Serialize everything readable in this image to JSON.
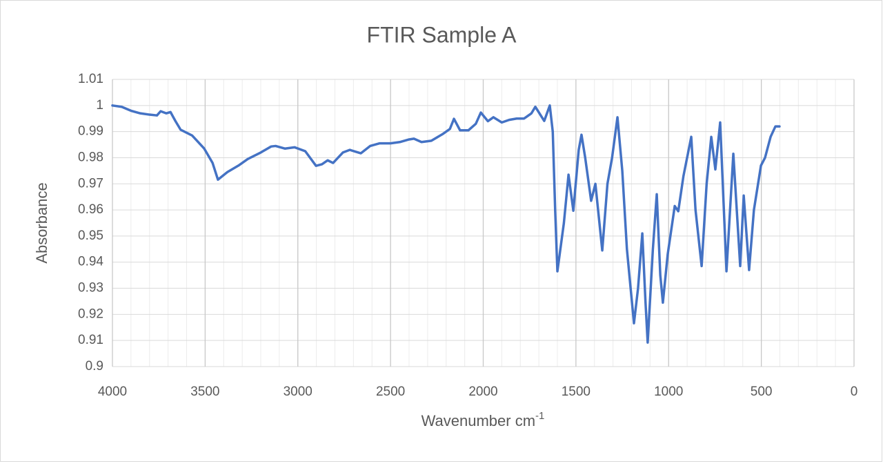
{
  "chart_data": {
    "type": "line",
    "title": "FTIR Sample A",
    "x_label": {
      "text": "Wavenumber cm",
      "superscript": "-1"
    },
    "y_label": "Absorbance",
    "color": "#4472c4",
    "xlim": [
      4000,
      0
    ],
    "xticks": [
      4000,
      3500,
      3000,
      2500,
      2000,
      1500,
      1000,
      500,
      0
    ],
    "minor_grid_step": 100,
    "ylim": [
      0.9,
      1.01
    ],
    "yticks": [
      1.01,
      1,
      0.99,
      0.98,
      0.97,
      0.96,
      0.95,
      0.94,
      0.93,
      0.92,
      0.91,
      0.9
    ],
    "grid": true,
    "x": [
      4000,
      3950,
      3900,
      3850,
      3800,
      3760,
      3740,
      3710,
      3687,
      3660,
      3632,
      3570,
      3505,
      3460,
      3431,
      3380,
      3320,
      3270,
      3200,
      3144,
      3120,
      3070,
      3018,
      2960,
      2902,
      2870,
      2839,
      2810,
      2757,
      2720,
      2660,
      2610,
      2560,
      2500,
      2450,
      2400,
      2374,
      2333,
      2280,
      2220,
      2180,
      2158,
      2125,
      2080,
      2040,
      2013,
      1975,
      1945,
      1900,
      1860,
      1820,
      1780,
      1740,
      1719,
      1671,
      1641,
      1625,
      1612,
      1600,
      1565,
      1540,
      1514,
      1485,
      1470,
      1450,
      1418,
      1395,
      1358,
      1330,
      1305,
      1276,
      1250,
      1225,
      1205,
      1187,
      1165,
      1142,
      1125,
      1113,
      1085,
      1064,
      1045,
      1031,
      1005,
      967,
      948,
      920,
      878,
      855,
      822,
      795,
      770,
      748,
      722,
      705,
      688,
      651,
      614,
      595,
      566,
      540,
      502,
      480,
      450,
      424,
      402
    ],
    "values": [
      1.0,
      0.9995,
      0.998,
      0.997,
      0.9965,
      0.9962,
      0.9978,
      0.997,
      0.9975,
      0.994,
      0.9907,
      0.9885,
      0.9835,
      0.978,
      0.9716,
      0.9745,
      0.977,
      0.9795,
      0.982,
      0.9843,
      0.9845,
      0.9835,
      0.984,
      0.9825,
      0.9769,
      0.9775,
      0.979,
      0.978,
      0.982,
      0.983,
      0.9817,
      0.9845,
      0.9855,
      0.9855,
      0.986,
      0.987,
      0.9873,
      0.986,
      0.9865,
      0.989,
      0.991,
      0.9949,
      0.9905,
      0.9905,
      0.993,
      0.9973,
      0.994,
      0.9955,
      0.9935,
      0.9945,
      0.995,
      0.995,
      0.997,
      0.9995,
      0.9941,
      1.0,
      0.99,
      0.96,
      0.9365,
      0.955,
      0.9735,
      0.9597,
      0.983,
      0.9888,
      0.98,
      0.9635,
      0.97,
      0.9445,
      0.97,
      0.98,
      0.9955,
      0.975,
      0.945,
      0.93,
      0.9166,
      0.93,
      0.951,
      0.925,
      0.9092,
      0.945,
      0.966,
      0.935,
      0.9245,
      0.943,
      0.9615,
      0.9595,
      0.973,
      0.988,
      0.96,
      0.9385,
      0.97,
      0.988,
      0.9755,
      0.9935,
      0.965,
      0.9365,
      0.9815,
      0.9385,
      0.9655,
      0.937,
      0.96,
      0.977,
      0.98,
      0.988,
      0.992,
      0.992
    ]
  }
}
